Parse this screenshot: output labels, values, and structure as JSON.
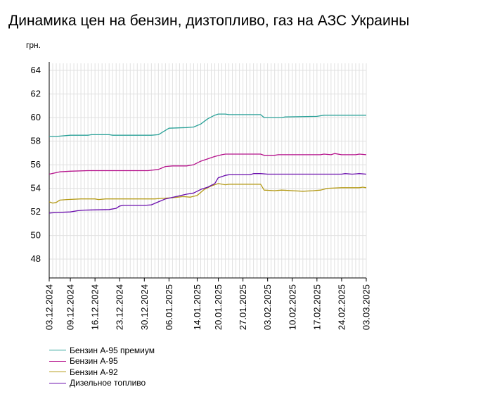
{
  "title": "Динамика цен на бензин, дизтопливо, газ на АЗС Украины",
  "chart_data": {
    "type": "line",
    "title": "Динамика цен на бензин, дизтопливо, газ на АЗС Украины",
    "ylabel": "грн.",
    "xlabel": "",
    "ylim": [
      46.4,
      64.6
    ],
    "yticks": [
      48,
      50,
      52,
      54,
      56,
      58,
      60,
      62,
      64
    ],
    "x_tick_labels": [
      "03.12.2024",
      "09.12.2024",
      "16.12.2024",
      "23.12.2024",
      "30.12.2024",
      "06.01.2025",
      "14.01.2025",
      "20.01.2025",
      "27.01.2025",
      "03.02.2025",
      "10.02.2025",
      "17.02.2025",
      "24.02.2025",
      "03.03.2025"
    ],
    "grid": true,
    "legend_position": "bottom-left",
    "series": [
      {
        "name": "Бензин А-95 премиум",
        "color": "#2aa198",
        "points": [
          [
            "2024-12-03",
            58.4
          ],
          [
            "2024-12-05",
            58.4
          ],
          [
            "2024-12-09",
            58.5
          ],
          [
            "2024-12-14",
            58.5
          ],
          [
            "2024-12-15",
            58.55
          ],
          [
            "2024-12-20",
            58.55
          ],
          [
            "2024-12-21",
            58.5
          ],
          [
            "2024-12-26",
            58.5
          ],
          [
            "2024-12-31",
            58.5
          ],
          [
            "2025-01-01",
            58.5
          ],
          [
            "2025-01-03",
            58.55
          ],
          [
            "2025-01-06",
            59.1
          ],
          [
            "2025-01-11",
            59.15
          ],
          [
            "2025-01-13",
            59.2
          ],
          [
            "2025-01-15",
            59.45
          ],
          [
            "2025-01-17",
            59.9
          ],
          [
            "2025-01-19",
            60.2
          ],
          [
            "2025-01-20",
            60.3
          ],
          [
            "2025-01-22",
            60.3
          ],
          [
            "2025-01-23",
            60.25
          ],
          [
            "2025-02-01",
            60.25
          ],
          [
            "2025-02-02",
            60.0
          ],
          [
            "2025-02-07",
            60.0
          ],
          [
            "2025-02-08",
            60.05
          ],
          [
            "2025-02-17",
            60.1
          ],
          [
            "2025-02-19",
            60.2
          ],
          [
            "2025-03-03",
            60.2
          ]
        ]
      },
      {
        "name": "Бензин А-95",
        "color": "#b5118b",
        "points": [
          [
            "2024-12-03",
            55.2
          ],
          [
            "2024-12-06",
            55.4
          ],
          [
            "2024-12-09",
            55.45
          ],
          [
            "2024-12-14",
            55.5
          ],
          [
            "2024-12-20",
            55.5
          ],
          [
            "2024-12-31",
            55.5
          ],
          [
            "2025-01-03",
            55.6
          ],
          [
            "2025-01-05",
            55.85
          ],
          [
            "2025-01-07",
            55.9
          ],
          [
            "2025-01-11",
            55.9
          ],
          [
            "2025-01-13",
            56.0
          ],
          [
            "2025-01-15",
            56.3
          ],
          [
            "2025-01-17",
            56.5
          ],
          [
            "2025-01-19",
            56.7
          ],
          [
            "2025-01-21",
            56.85
          ],
          [
            "2025-01-22",
            56.9
          ],
          [
            "2025-02-01",
            56.9
          ],
          [
            "2025-02-02",
            56.8
          ],
          [
            "2025-02-05",
            56.8
          ],
          [
            "2025-02-06",
            56.85
          ],
          [
            "2025-02-18",
            56.85
          ],
          [
            "2025-02-19",
            56.9
          ],
          [
            "2025-02-21",
            56.85
          ],
          [
            "2025-02-22",
            56.95
          ],
          [
            "2025-02-24",
            56.85
          ],
          [
            "2025-02-28",
            56.85
          ],
          [
            "2025-03-01",
            56.9
          ],
          [
            "2025-03-03",
            56.85
          ]
        ]
      },
      {
        "name": "Бензин А-92",
        "color": "#b49a16",
        "points": [
          [
            "2024-12-03",
            52.85
          ],
          [
            "2024-12-04",
            52.75
          ],
          [
            "2024-12-05",
            52.8
          ],
          [
            "2024-12-06",
            53.0
          ],
          [
            "2024-12-08",
            53.05
          ],
          [
            "2024-12-12",
            53.1
          ],
          [
            "2024-12-16",
            53.1
          ],
          [
            "2024-12-17",
            53.05
          ],
          [
            "2024-12-19",
            53.1
          ],
          [
            "2024-12-20",
            53.1
          ],
          [
            "2025-01-02",
            53.1
          ],
          [
            "2025-01-04",
            53.15
          ],
          [
            "2025-01-07",
            53.2
          ],
          [
            "2025-01-10",
            53.3
          ],
          [
            "2025-01-12",
            53.25
          ],
          [
            "2025-01-14",
            53.4
          ],
          [
            "2025-01-16",
            53.9
          ],
          [
            "2025-01-18",
            54.2
          ],
          [
            "2025-01-20",
            54.4
          ],
          [
            "2025-01-22",
            54.3
          ],
          [
            "2025-01-23",
            54.35
          ],
          [
            "2025-02-01",
            54.35
          ],
          [
            "2025-02-02",
            53.85
          ],
          [
            "2025-02-05",
            53.8
          ],
          [
            "2025-02-07",
            53.85
          ],
          [
            "2025-02-10",
            53.8
          ],
          [
            "2025-02-13",
            53.75
          ],
          [
            "2025-02-16",
            53.8
          ],
          [
            "2025-02-18",
            53.85
          ],
          [
            "2025-02-20",
            54.0
          ],
          [
            "2025-02-24",
            54.05
          ],
          [
            "2025-03-01",
            54.05
          ],
          [
            "2025-03-02",
            54.1
          ],
          [
            "2025-03-03",
            54.05
          ]
        ]
      },
      {
        "name": "Дизельное топливо",
        "color": "#6a0dad",
        "points": [
          [
            "2024-12-03",
            51.9
          ],
          [
            "2024-12-05",
            51.95
          ],
          [
            "2024-12-09",
            52.0
          ],
          [
            "2024-12-11",
            52.1
          ],
          [
            "2024-12-13",
            52.15
          ],
          [
            "2024-12-20",
            52.2
          ],
          [
            "2024-12-22",
            52.3
          ],
          [
            "2024-12-23",
            52.5
          ],
          [
            "2024-12-24",
            52.55
          ],
          [
            "2024-12-30",
            52.55
          ],
          [
            "2025-01-01",
            52.6
          ],
          [
            "2025-01-03",
            52.85
          ],
          [
            "2025-01-05",
            53.1
          ],
          [
            "2025-01-08",
            53.3
          ],
          [
            "2025-01-11",
            53.5
          ],
          [
            "2025-01-13",
            53.6
          ],
          [
            "2025-01-15",
            53.9
          ],
          [
            "2025-01-17",
            54.1
          ],
          [
            "2025-01-19",
            54.4
          ],
          [
            "2025-01-20",
            54.9
          ],
          [
            "2025-01-22",
            55.1
          ],
          [
            "2025-01-23",
            55.15
          ],
          [
            "2025-01-29",
            55.15
          ],
          [
            "2025-01-30",
            55.25
          ],
          [
            "2025-02-01",
            55.25
          ],
          [
            "2025-02-03",
            55.2
          ],
          [
            "2025-02-10",
            55.2
          ],
          [
            "2025-02-24",
            55.2
          ],
          [
            "2025-02-25",
            55.25
          ],
          [
            "2025-02-27",
            55.2
          ],
          [
            "2025-03-01",
            55.25
          ],
          [
            "2025-03-03",
            55.2
          ]
        ]
      }
    ]
  }
}
